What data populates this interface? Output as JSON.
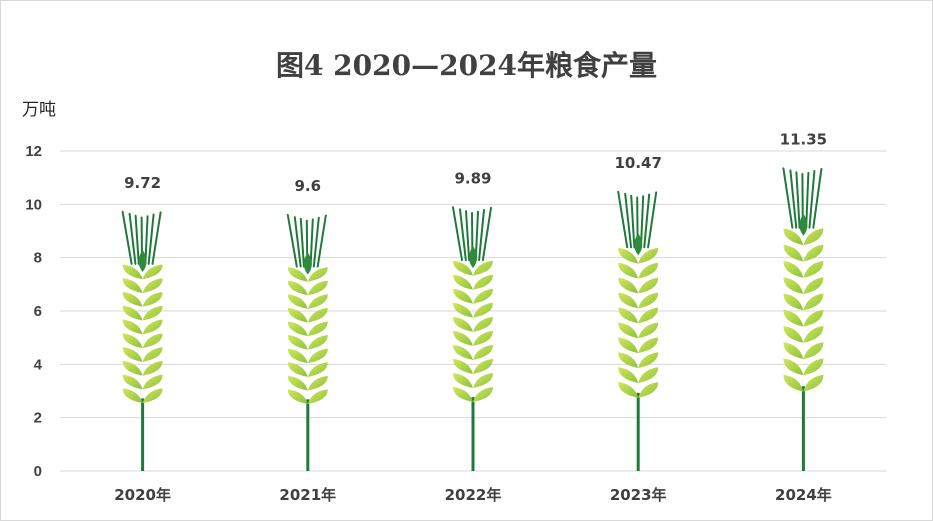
{
  "chart_data": {
    "type": "bar",
    "title": "图4  2020—2024年粮食产量",
    "ylabel": "万吨",
    "xlabel": "",
    "categories": [
      "2020年",
      "2021年",
      "2022年",
      "2023年",
      "2024年"
    ],
    "values": [
      9.72,
      9.6,
      9.89,
      10.47,
      11.35
    ],
    "data_labels": [
      "9.72",
      "9.6",
      "9.89",
      "10.47",
      "11.35"
    ],
    "ylim": [
      0,
      12
    ],
    "yticks": [
      0,
      2,
      4,
      6,
      8,
      10,
      12
    ],
    "grid": true,
    "legend": "none",
    "bar_shape": "wheat-ear",
    "colors": {
      "grain_light": "#c5dc48",
      "grain_dark": "#7fb83a",
      "grain_tip": "#2e8b3a",
      "stem": "#1f7a3a",
      "grid": "#d9d9d9",
      "text": "#404040"
    }
  }
}
